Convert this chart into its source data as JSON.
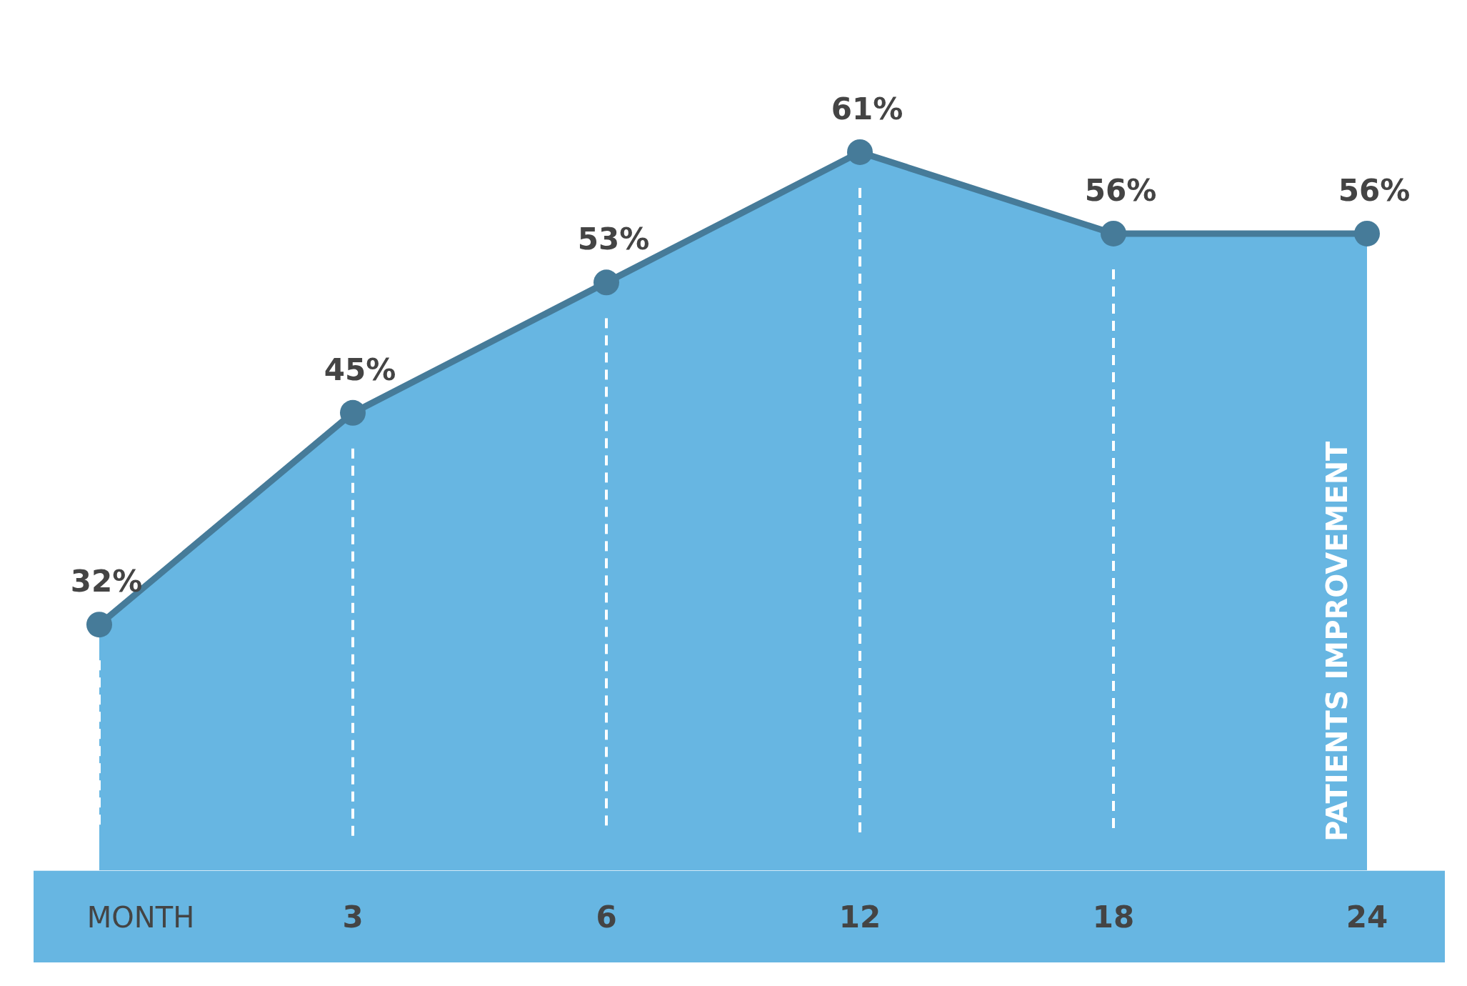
{
  "chart_data": {
    "type": "area",
    "categories": [
      null,
      "3",
      "6",
      "12",
      "18",
      "24"
    ],
    "xlabel": "MONTH",
    "ylabel": "PATIENTS IMPROVEMENT",
    "marker": "circle",
    "series": [
      {
        "color": "#67b6e2",
        "values": [
          32,
          45,
          53,
          61,
          56,
          56
        ],
        "value_labels": [
          "32%",
          "45%",
          "53%",
          "61%",
          "56%",
          "56%"
        ]
      }
    ]
  }
}
